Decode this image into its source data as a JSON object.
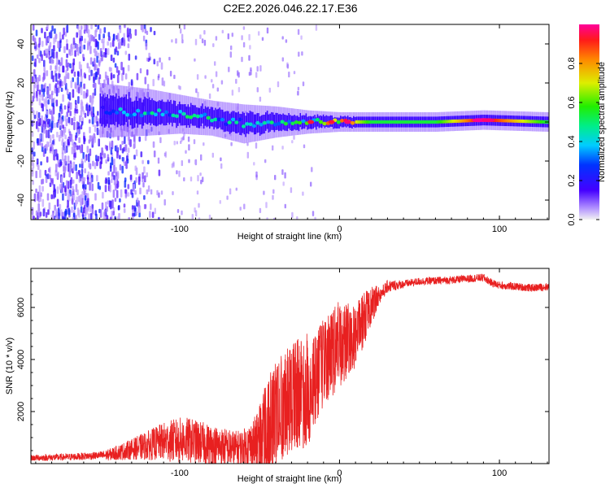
{
  "title": "C2E2.2026.046.22.17.E36",
  "colors": {
    "snr_line": "#e82020",
    "spec_hot": "#ff1f3c",
    "spec_mid": "#11dd55",
    "spec_cold": "#3500ff"
  },
  "chart_data": [
    {
      "type": "heatmap",
      "name": "spectrogram",
      "title": "",
      "xlabel": "Height of straight line (km)",
      "ylabel": "Frequency (Hz)",
      "xlim": [
        -193,
        131
      ],
      "ylim": [
        -50,
        50
      ],
      "x_ticks": [
        -100,
        0,
        100
      ],
      "y_ticks": [
        -40,
        -20,
        0,
        20,
        40
      ],
      "x_tick_labels": [
        "-100",
        "0",
        "100"
      ],
      "y_tick_labels": [
        "-40",
        "-20",
        "0",
        "20",
        "40"
      ],
      "colorbar": {
        "label": "Normalized spectral amplitude",
        "range": [
          0,
          1
        ],
        "ticks": [
          0.0,
          0.2,
          0.4,
          0.6,
          0.8
        ],
        "tick_labels": [
          "0.0",
          "0.2",
          "0.4",
          "0.6",
          "0.8"
        ]
      },
      "ridge": [
        {
          "x": -150,
          "freq": 6,
          "width_hz": 14,
          "amp": 0.35
        },
        {
          "x": -120,
          "freq": 5,
          "width_hz": 12,
          "amp": 0.45
        },
        {
          "x": -100,
          "freq": 4,
          "width_hz": 10,
          "amp": 0.5
        },
        {
          "x": -80,
          "freq": 2,
          "width_hz": 9,
          "amp": 0.5
        },
        {
          "x": -60,
          "freq": -1,
          "width_hz": 10,
          "amp": 0.45
        },
        {
          "x": -40,
          "freq": 0,
          "width_hz": 8,
          "amp": 0.5
        },
        {
          "x": -20,
          "freq": 0,
          "width_hz": 6,
          "amp": 0.6
        },
        {
          "x": 0,
          "freq": 0,
          "width_hz": 5,
          "amp": 0.9
        },
        {
          "x": 20,
          "freq": 0,
          "width_hz": 5,
          "amp": 0.55
        },
        {
          "x": 60,
          "freq": 0,
          "width_hz": 5,
          "amp": 0.55
        },
        {
          "x": 90,
          "freq": 1,
          "width_hz": 5,
          "amp": 1.0
        },
        {
          "x": 130,
          "freq": 0,
          "width_hz": 5,
          "amp": 0.55
        }
      ],
      "noise_region_x": [
        -193,
        -125
      ]
    },
    {
      "type": "line",
      "name": "snr",
      "title": "",
      "xlabel": "Height of straight line (km)",
      "ylabel": "SNR (10 * v/v)",
      "xlim": [
        -193,
        131
      ],
      "ylim": [
        0,
        7500
      ],
      "x_ticks": [
        -100,
        0,
        100
      ],
      "y_ticks": [
        2000,
        4000,
        6000
      ],
      "x_tick_labels": [
        "-100",
        "0",
        "100"
      ],
      "y_tick_labels": [
        "2000",
        "4000",
        "6000"
      ],
      "trend": {
        "x": [
          -193,
          -170,
          -145,
          -130,
          -110,
          -95,
          -80,
          -65,
          -50,
          -40,
          -30,
          -20,
          -15,
          -10,
          0,
          10,
          20,
          30,
          50,
          70,
          90,
          95,
          100,
          110,
          120,
          131
        ],
        "y": [
          220,
          250,
          330,
          550,
          850,
          900,
          700,
          550,
          800,
          1900,
          2600,
          2800,
          3200,
          3900,
          4600,
          4900,
          6100,
          6800,
          7000,
          7050,
          7150,
          6950,
          6850,
          6800,
          6750,
          6800
        ]
      },
      "noise_amp": {
        "x": [
          -193,
          -150,
          -130,
          -100,
          -60,
          -45,
          -20,
          -12,
          0,
          15,
          25,
          40,
          131
        ],
        "y": [
          120,
          150,
          400,
          900,
          700,
          1500,
          1700,
          1300,
          1300,
          800,
          300,
          150,
          150
        ]
      }
    }
  ]
}
